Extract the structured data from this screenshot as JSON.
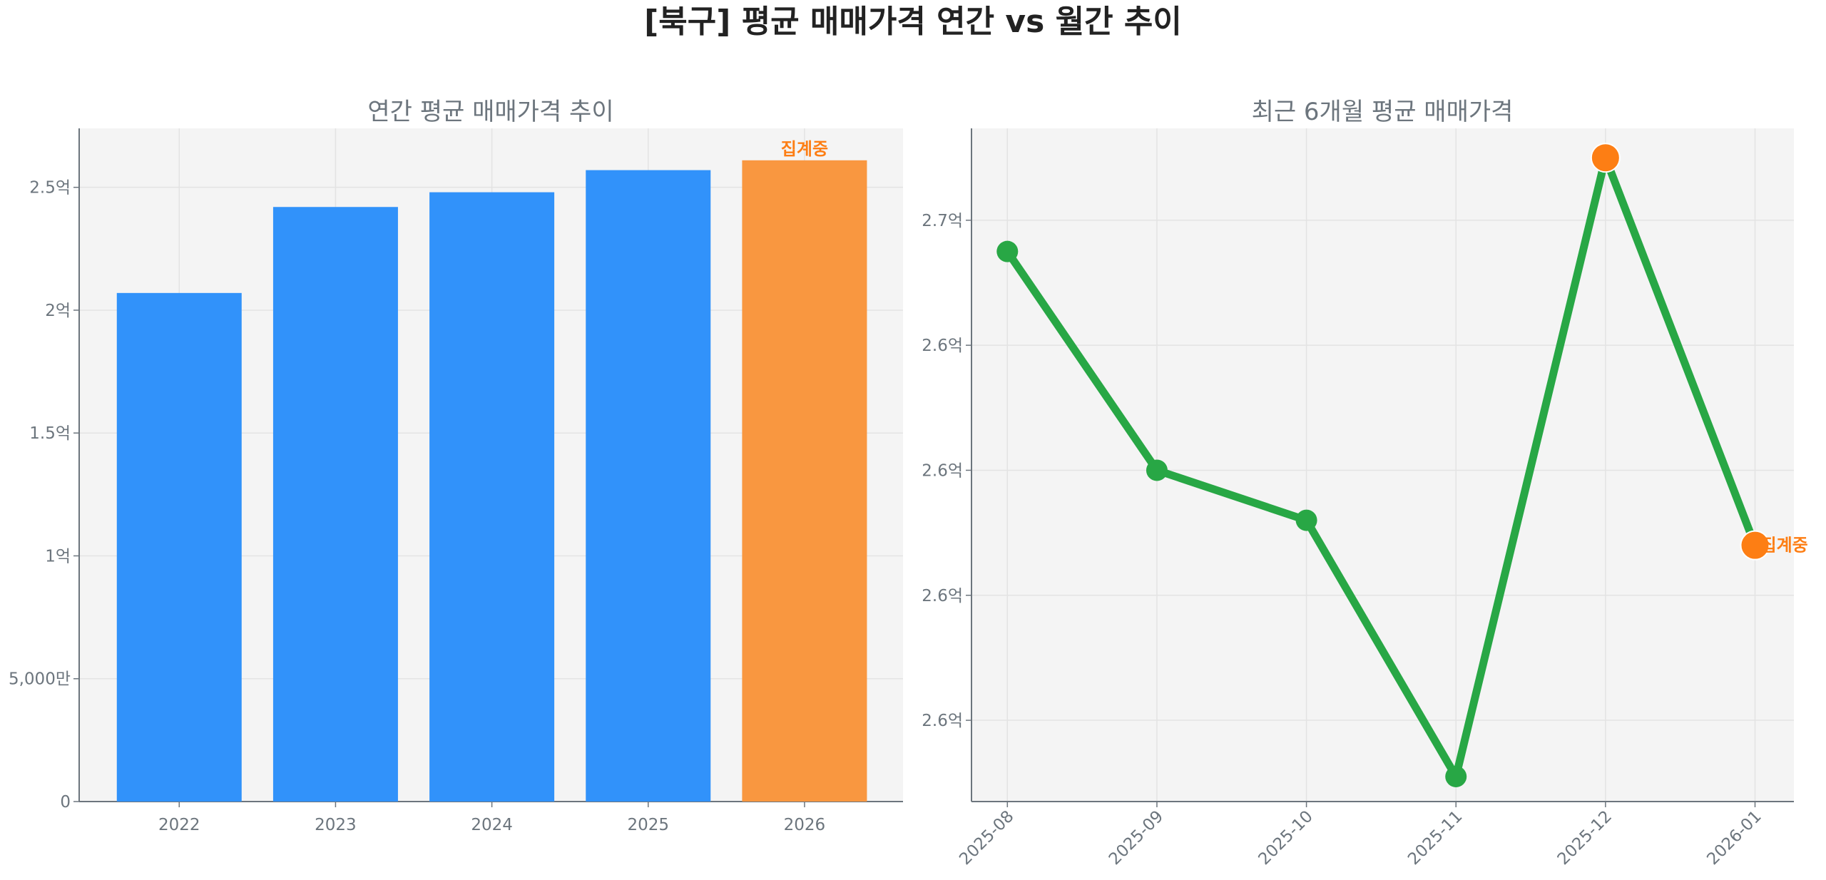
{
  "title": "[북구] 평균 매매가격 연간 vs 월간 추이",
  "colors": {
    "bar": "#3192fa",
    "bar_partial": "#f99740",
    "line": "#28a745",
    "marker_partial": "#fd7e14",
    "plot_bg": "#f4f4f4",
    "text": "#6c757d"
  },
  "chart_data": [
    {
      "type": "bar",
      "title": "연간 평균 매매가격 추이",
      "categories": [
        "2022",
        "2023",
        "2024",
        "2025",
        "2026"
      ],
      "values": [
        207000000,
        242000000,
        248000000,
        257000000,
        261000000
      ],
      "highlight_index": 4,
      "annotation": "집계중",
      "ylim": [
        0,
        274000000
      ],
      "yticks": [
        0,
        50000000,
        100000000,
        150000000,
        200000000,
        250000000
      ],
      "ytick_labels": [
        "0",
        "5,000만",
        "1억",
        "1.5억",
        "2억",
        "2.5억"
      ],
      "grid": true
    },
    {
      "type": "line",
      "title": "최근 6개월 평균 매매가격",
      "categories": [
        "2025-08",
        "2025-09",
        "2025-10",
        "2025-11",
        "2025-12",
        "2026-01"
      ],
      "values": [
        269500000,
        266000000,
        265200000,
        261100000,
        271000000,
        264800000
      ],
      "highlight_indices": [
        4,
        5
      ],
      "annotation": "집계중",
      "ylim": [
        260700000,
        271470000
      ],
      "yticks": [
        262000000,
        264000000,
        266000000,
        268000000,
        270000000
      ],
      "ytick_labels": [
        "2.6억",
        "2.6억",
        "2.6억",
        "2.6억",
        "2.7억"
      ],
      "grid": true
    }
  ]
}
